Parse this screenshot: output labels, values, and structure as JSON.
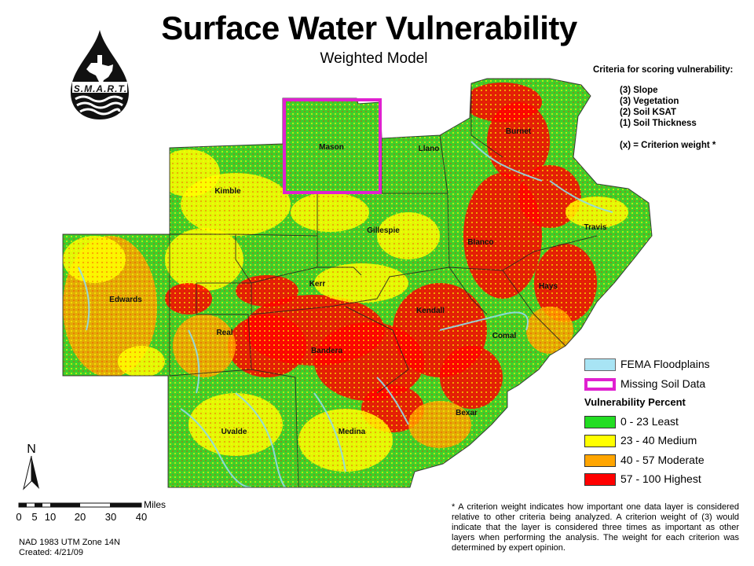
{
  "title": "Surface Water Vulnerability",
  "subtitle": "Weighted Model",
  "logo": {
    "text": "S.M.A.R.T.",
    "icon": "water-drop-texas-icon"
  },
  "criteria": {
    "heading": "Criteria for scoring vulnerability:",
    "items": [
      "(3) Slope",
      "(3) Vegetation",
      "(2) Soil KSAT",
      "(1) Soil Thickness"
    ],
    "note": "(x) = Criterion weight *"
  },
  "counties": [
    "Mason",
    "Llano",
    "Burnet",
    "Kimble",
    "Gillespie",
    "Travis",
    "Blanco",
    "Edwards",
    "Kerr",
    "Hays",
    "Kendall",
    "Real",
    "Comal",
    "Bandera",
    "Bexar",
    "Uvalde",
    "Medina"
  ],
  "legend": {
    "items": [
      {
        "label": "FEMA Floodplains",
        "color": "#a8e4f4"
      },
      {
        "label": "Missing Soil Data",
        "color": "#e020d0"
      }
    ],
    "heading": "Vulnerability Percent",
    "classes": [
      {
        "label": "0 - 23 Least",
        "color": "#22dd22"
      },
      {
        "label": "23 - 40 Medium",
        "color": "#ffff00"
      },
      {
        "label": "40 - 57 Moderate",
        "color": "#ffa500"
      },
      {
        "label": "57 - 100 Highest",
        "color": "#ff0000"
      }
    ]
  },
  "north_label": "N",
  "scale": {
    "unit": "Miles",
    "ticks": [
      "0",
      "5",
      "10",
      "20",
      "30",
      "40"
    ]
  },
  "projection": "NAD 1983 UTM Zone 14N",
  "created": "Created: 4/21/09",
  "footnote": "* A criterion weight indicates how important one data layer is considered relative to other criteria being analyzed. A criterion weight of (3) would indicate that the layer is considered three times as important as other layers when performing the analysis. The weight for each criterion was determined by expert opinion."
}
